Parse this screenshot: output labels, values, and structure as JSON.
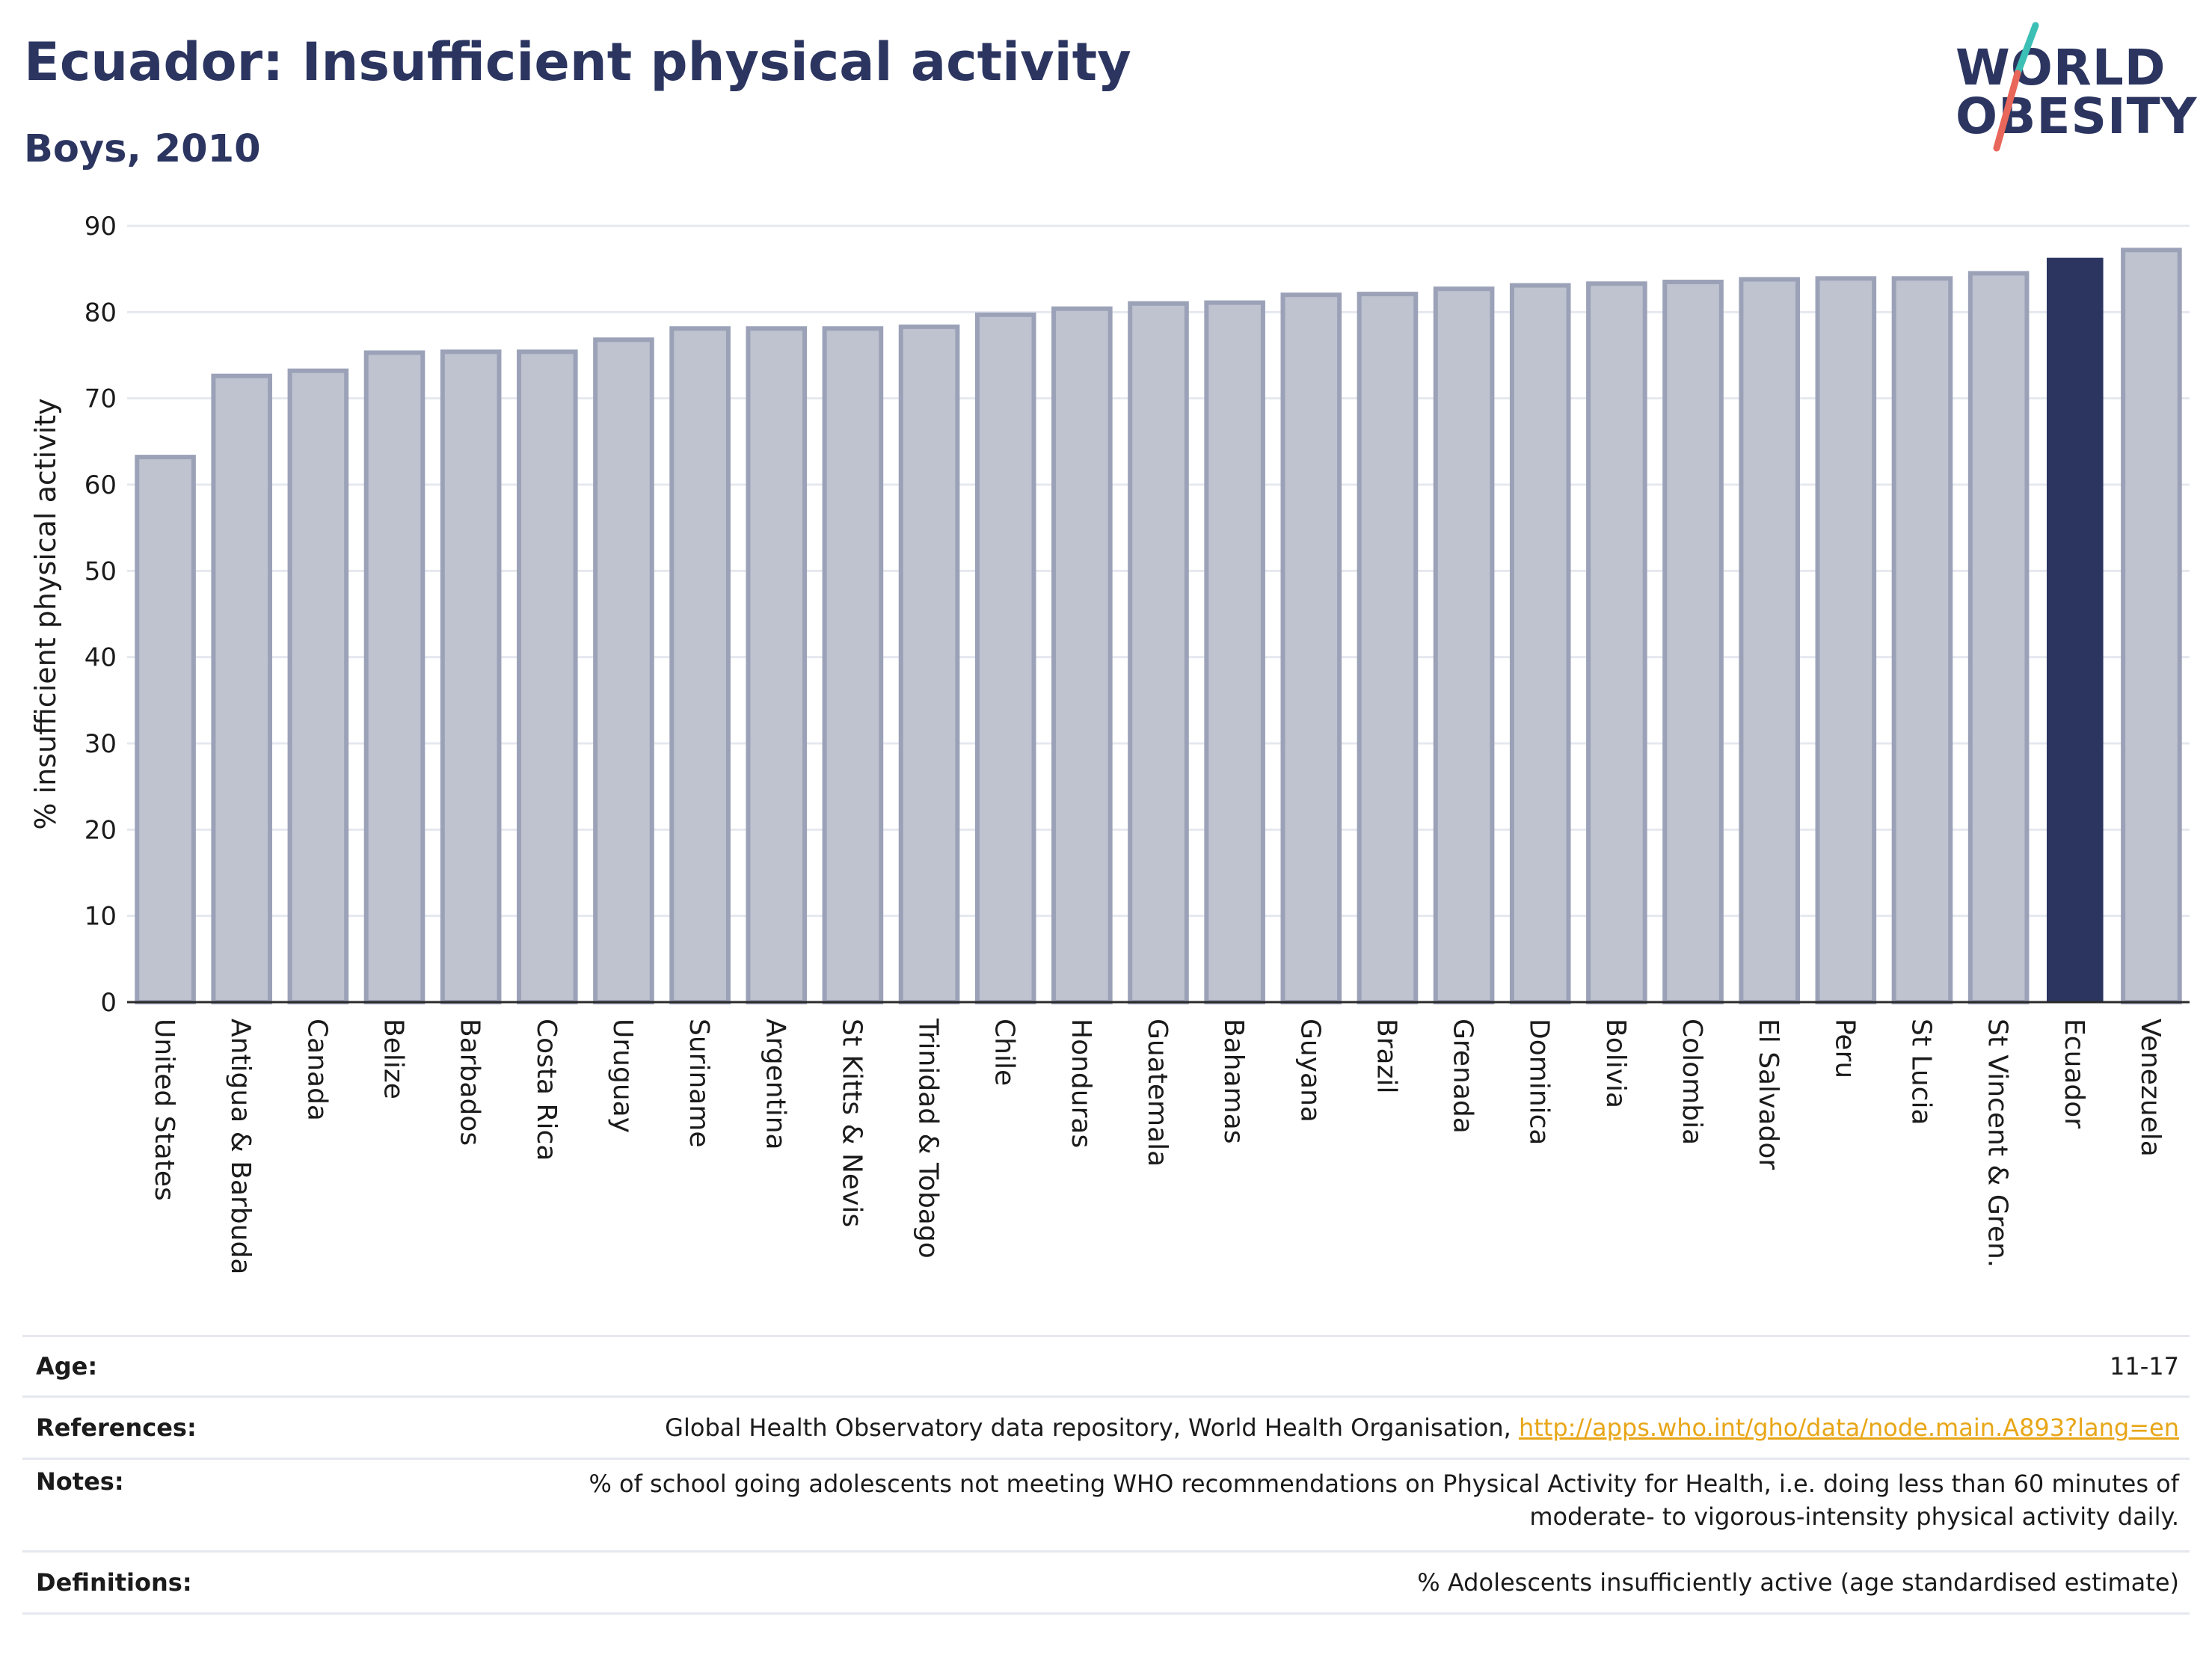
{
  "header": {
    "title": "Ecuador: Insufficient physical activity",
    "subtitle": "Boys, 2010"
  },
  "logo": {
    "line1": "WORLD",
    "line2": "OBESITY",
    "colors": {
      "text": "#2b3560",
      "slash_top": "#3cbfb4",
      "slash_bottom": "#e8665a"
    }
  },
  "colors": {
    "highlight_bar": "#2b3560",
    "default_bar": "#bfc3d0",
    "default_bar_edge": "#9ba2b8",
    "grid": "#e6e8ef",
    "link": "#e8a617"
  },
  "chart_data": {
    "type": "bar",
    "ylabel": "% insufficient physical activity",
    "xlabel": "",
    "ylim": [
      0,
      90
    ],
    "yticks": [
      0,
      10,
      20,
      30,
      40,
      50,
      60,
      70,
      80,
      90
    ],
    "grid": true,
    "highlight": "Ecuador",
    "categories": [
      "United States",
      "Antigua & Barbuda",
      "Canada",
      "Belize",
      "Barbados",
      "Costa Rica",
      "Uruguay",
      "Suriname",
      "Argentina",
      "St Kitts & Nevis",
      "Trinidad & Tobago",
      "Chile",
      "Honduras",
      "Guatemala",
      "Bahamas",
      "Guyana",
      "Brazil",
      "Grenada",
      "Dominica",
      "Bolivia",
      "Colombia",
      "El Salvador",
      "Peru",
      "St Lucia",
      "St Vincent & Gren.",
      "Ecuador",
      "Venezuela"
    ],
    "values": [
      63.2,
      72.6,
      73.2,
      75.3,
      75.4,
      75.4,
      76.8,
      78.1,
      78.1,
      78.1,
      78.3,
      79.7,
      80.4,
      81.0,
      81.1,
      82.0,
      82.1,
      82.7,
      83.1,
      83.3,
      83.5,
      83.8,
      83.9,
      83.9,
      84.5,
      86.3,
      87.2
    ]
  },
  "meta": {
    "age_label": "Age:",
    "age_value": "11-17",
    "references_label": "References:",
    "references_text": "Global Health Observatory data repository, World Health Organisation, ",
    "references_link": "http://apps.who.int/gho/data/node.main.A893?lang=en",
    "notes_label": "Notes:",
    "notes_line1": "% of school going adolescents not meeting WHO recommendations on Physical Activity for Health, i.e. doing less than 60 minutes of",
    "notes_line2": "moderate- to vigorous-intensity physical activity daily.",
    "definitions_label": "Definitions:",
    "definitions_value": "% Adolescents insufficiently active (age standardised estimate)"
  }
}
